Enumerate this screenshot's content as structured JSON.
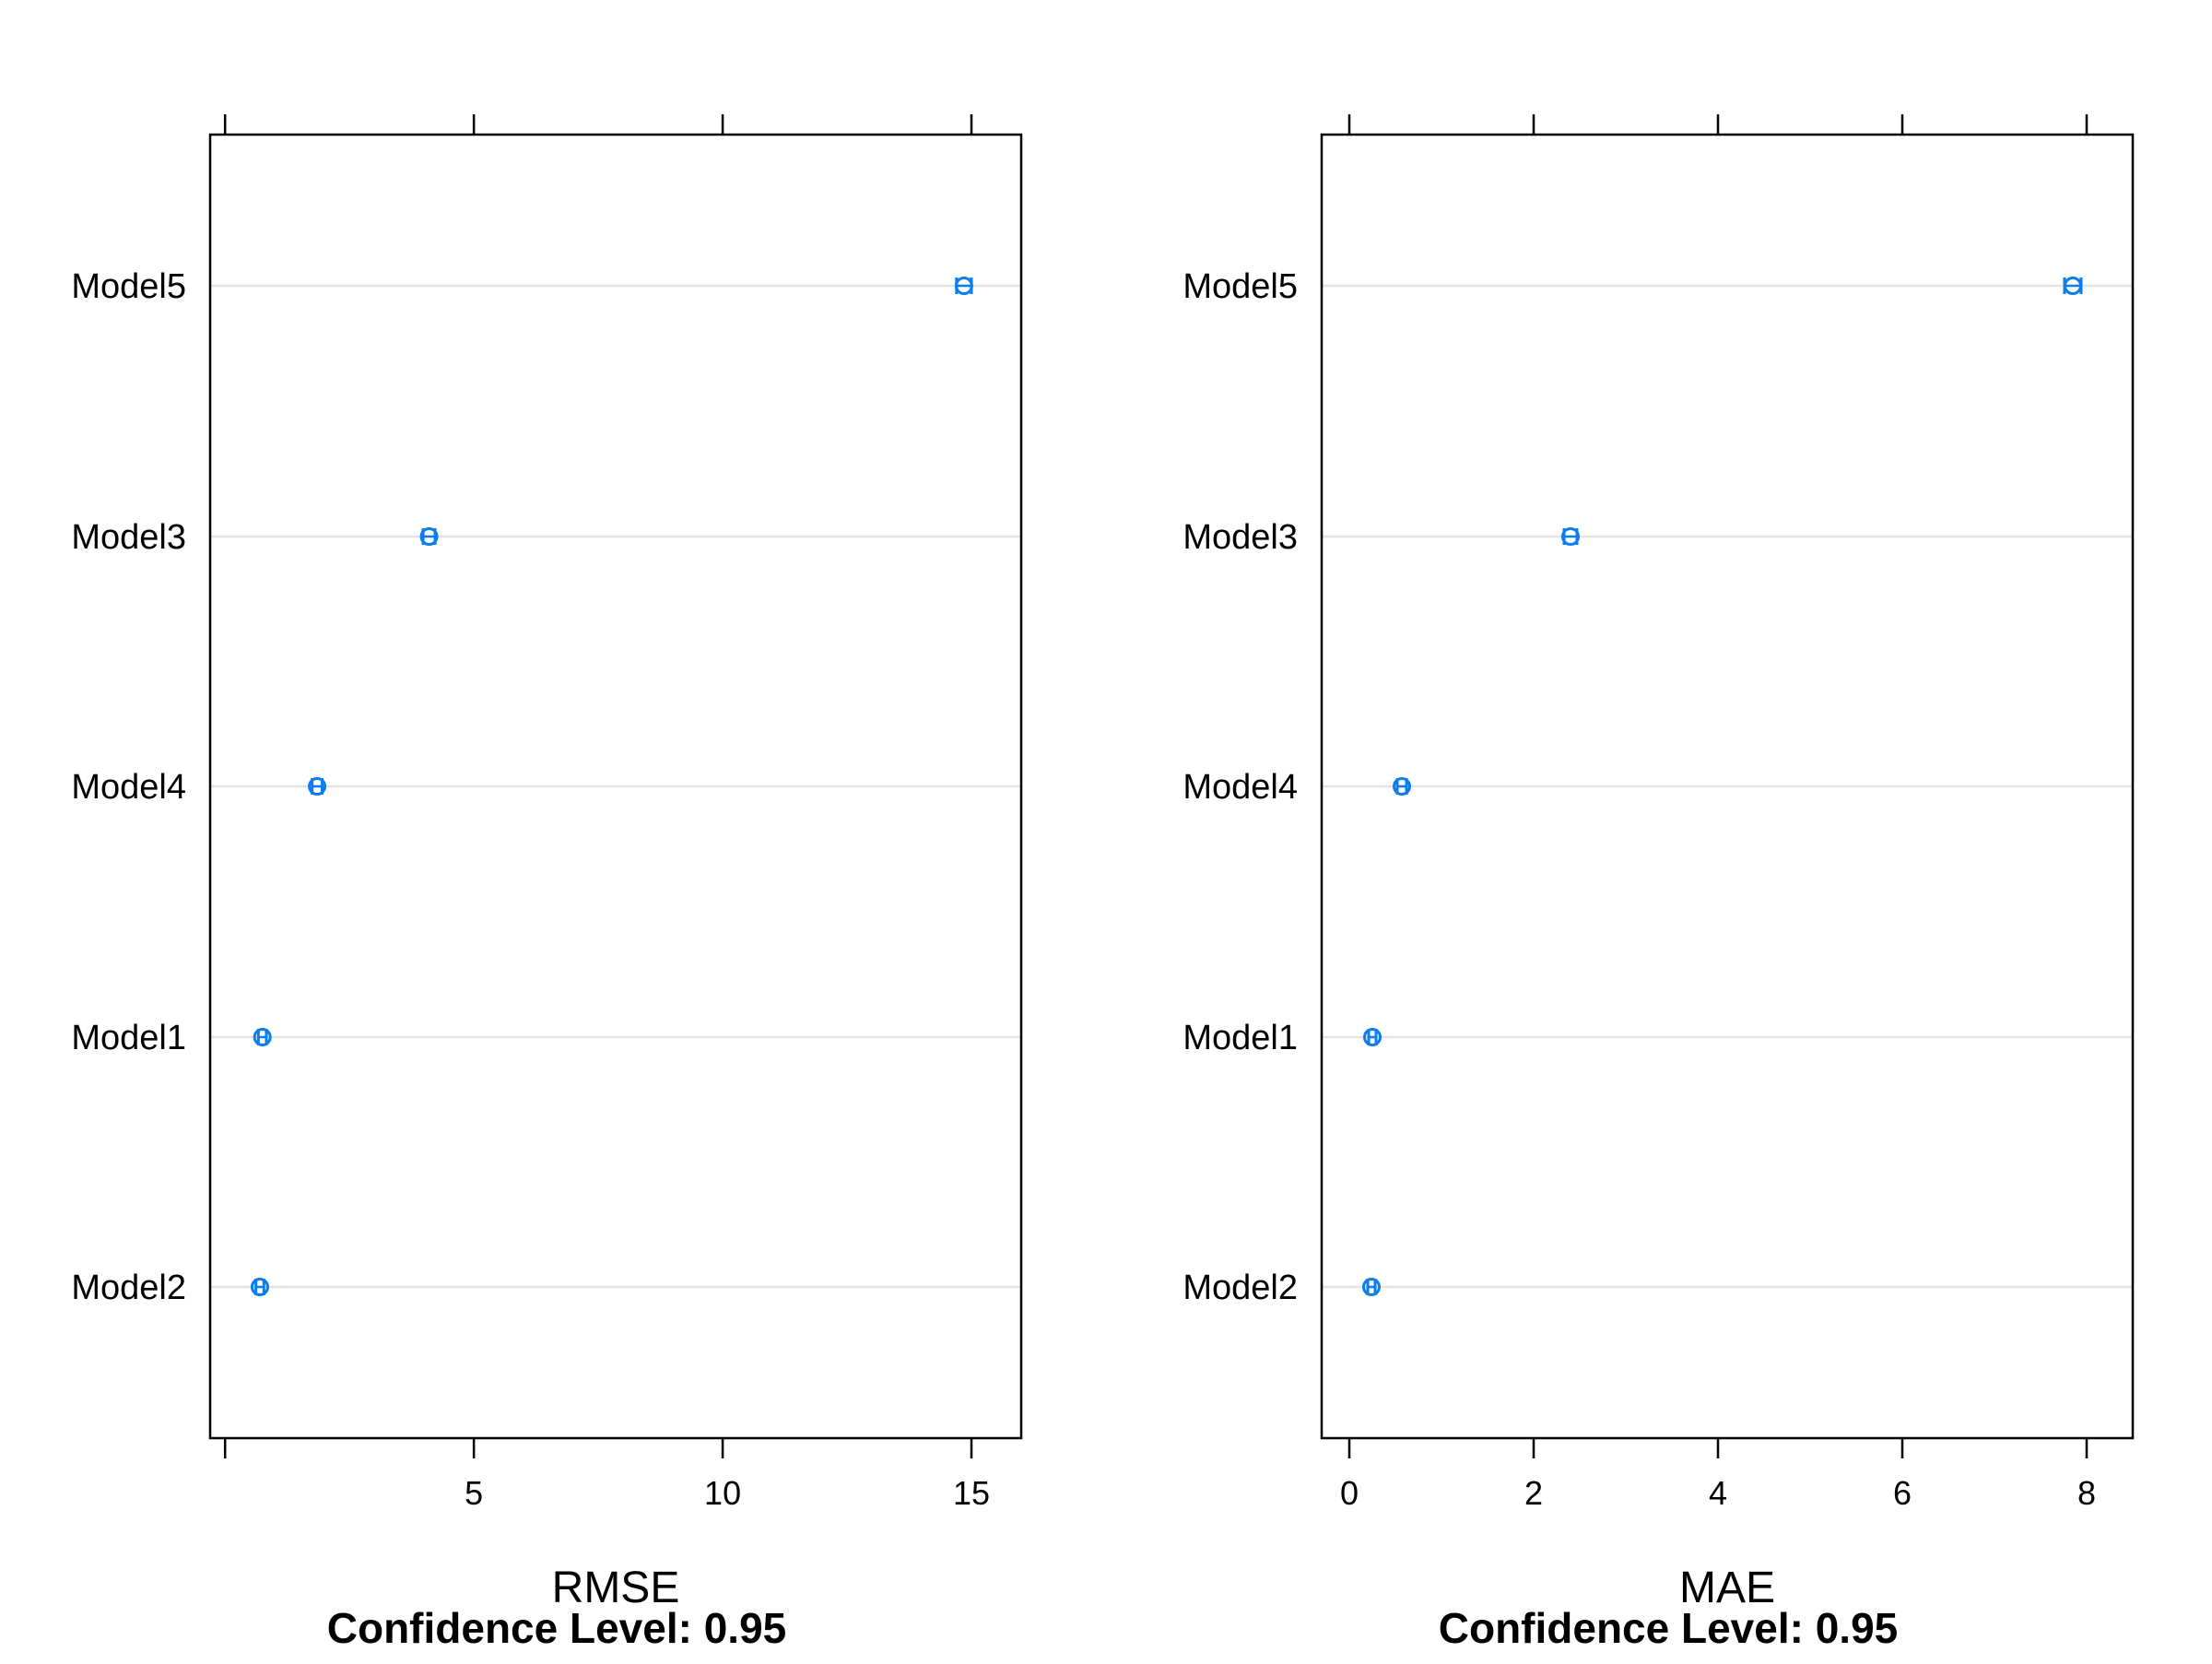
{
  "chart_data": [
    {
      "type": "dotplot",
      "xlabel": "RMSE",
      "caption": "Confidence Level: 0.95",
      "xlim": [
        -0.3,
        16.0
      ],
      "ticks": [
        0,
        5,
        10,
        15
      ],
      "tick_labels": [
        "",
        "5",
        "10",
        "15"
      ],
      "categories": [
        "Model5",
        "Model3",
        "Model4",
        "Model1",
        "Model2"
      ],
      "estimates": [
        14.85,
        4.1,
        1.85,
        0.75,
        0.7
      ],
      "lower": [
        14.7,
        3.98,
        1.75,
        0.67,
        0.62
      ],
      "upper": [
        15.0,
        4.22,
        1.95,
        0.83,
        0.78
      ],
      "grid": true,
      "point_color": "#0080ff"
    },
    {
      "type": "dotplot",
      "xlabel": "MAE",
      "caption": "Confidence Level: 0.95",
      "xlim": [
        -0.3,
        8.5
      ],
      "ticks": [
        0,
        2,
        4,
        6,
        8
      ],
      "tick_labels": [
        "0",
        "2",
        "4",
        "6",
        "8"
      ],
      "categories": [
        "Model5",
        "Model3",
        "Model4",
        "Model1",
        "Model2"
      ],
      "estimates": [
        7.85,
        2.4,
        0.57,
        0.25,
        0.24
      ],
      "lower": [
        7.76,
        2.33,
        0.52,
        0.21,
        0.2
      ],
      "upper": [
        7.94,
        2.47,
        0.62,
        0.29,
        0.28
      ],
      "grid": true,
      "point_color": "#0080ff"
    }
  ]
}
